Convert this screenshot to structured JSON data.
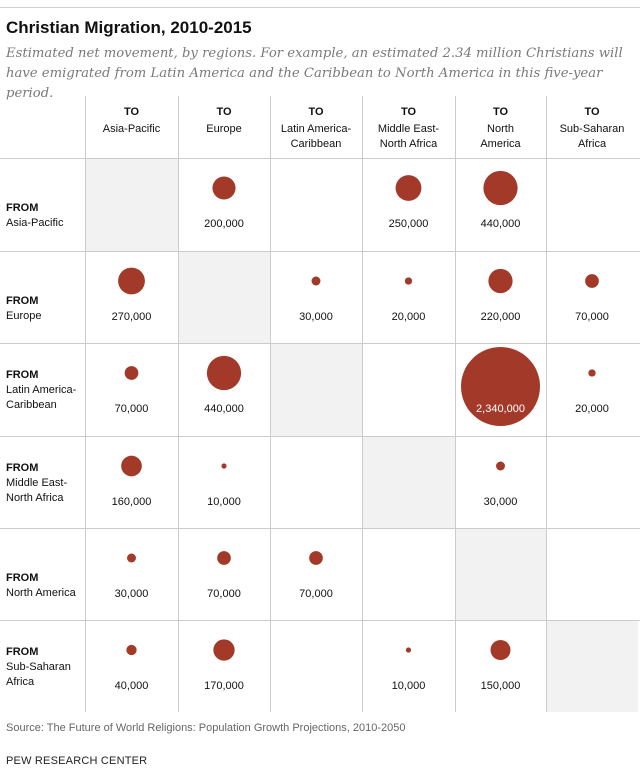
{
  "title": "Christian Migration, 2010-2015",
  "subtitle": "Estimated net movement, by regions. For example, an estimated 2.34 million Christians will have emigrated from Latin America and the Caribbean to North America in this five-year period.",
  "source": "Source: The Future of World Religions: Population Growth Projections, 2010-2050",
  "org": "PEW RESEARCH CENTER",
  "colors": {
    "bubble": "#a33a29",
    "diagonal": "#f2f2f2",
    "grid": "#cccccc"
  },
  "chart_data": {
    "type": "bubble-matrix",
    "to_prefix": "TO",
    "from_prefix": "FROM",
    "columns": [
      {
        "lines": [
          "Asia-Pacific"
        ]
      },
      {
        "lines": [
          "Europe"
        ]
      },
      {
        "lines": [
          "Latin America-",
          "Caribbean"
        ]
      },
      {
        "lines": [
          "Middle East-",
          "North Africa"
        ]
      },
      {
        "lines": [
          "North",
          "America"
        ]
      },
      {
        "lines": [
          "Sub-Saharan",
          "Africa"
        ]
      }
    ],
    "rows": [
      {
        "lines": [
          "Asia-Pacific"
        ]
      },
      {
        "lines": [
          "Europe"
        ]
      },
      {
        "lines": [
          "Latin America-",
          "Caribbean"
        ]
      },
      {
        "lines": [
          "Middle East-",
          "North Africa"
        ]
      },
      {
        "lines": [
          "North America"
        ]
      },
      {
        "lines": [
          "Sub-Saharan",
          "Africa"
        ]
      }
    ],
    "values": [
      [
        null,
        200000,
        null,
        250000,
        440000,
        null
      ],
      [
        270000,
        null,
        30000,
        20000,
        220000,
        70000
      ],
      [
        70000,
        440000,
        null,
        null,
        2340000,
        20000
      ],
      [
        160000,
        10000,
        null,
        null,
        30000,
        null
      ],
      [
        30000,
        70000,
        70000,
        null,
        null,
        null
      ],
      [
        40000,
        170000,
        null,
        10000,
        150000,
        null
      ]
    ],
    "labels": [
      [
        null,
        "200,000",
        null,
        "250,000",
        "440,000",
        null
      ],
      [
        "270,000",
        null,
        "30,000",
        "20,000",
        "220,000",
        "70,000"
      ],
      [
        "70,000",
        "440,000",
        null,
        null,
        "2,340,000",
        "20,000"
      ],
      [
        "160,000",
        "10,000",
        null,
        null,
        "30,000",
        null
      ],
      [
        "30,000",
        "70,000",
        "70,000",
        null,
        null,
        null
      ],
      [
        "40,000",
        "170,000",
        null,
        "10,000",
        "150,000",
        null
      ]
    ]
  }
}
